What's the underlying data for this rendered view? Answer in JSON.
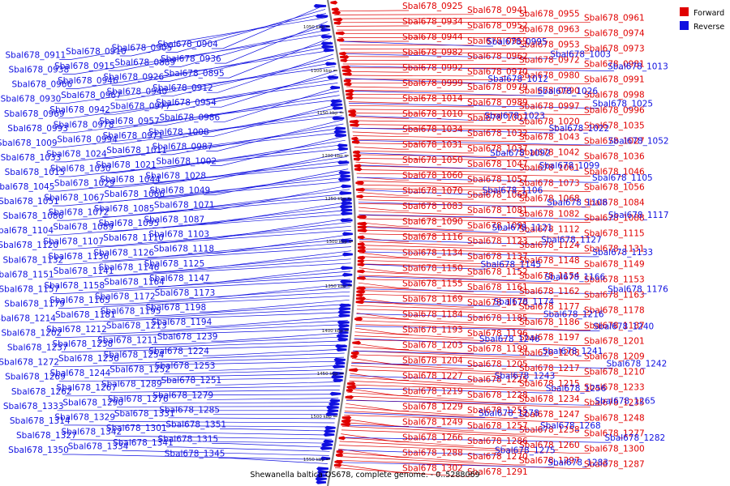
{
  "caption": "Shewanella baltica OS678, complete genome. - 0..5288069",
  "legend": [
    {
      "label": "Forward",
      "color": "#e00000"
    },
    {
      "label": "Reverse",
      "color": "#1010e0"
    }
  ],
  "colors": {
    "forward": "#e00000",
    "reverse": "#1010e0",
    "backbone": "#808080"
  },
  "ticks": [
    "1050 kbp",
    "1100 kbp",
    "1150 kbp",
    "1200 kbp",
    "1250 kbp",
    "1300 kbp",
    "1350 kbp",
    "1400 kbp",
    "1450 kbp",
    "1500 kbp",
    "1550 kbp"
  ],
  "reverse_genes": [
    "Sbal678_0904",
    "Sbal678_0905",
    "Sbal678_0910",
    "Sbal678_0911",
    "Sbal678_0936",
    "Sbal678_0889",
    "Sbal678_0915",
    "Sbal678_0938",
    "Sbal678_0895",
    "Sbal678_0926",
    "Sbal678_0946",
    "Sbal678_0966",
    "Sbal678_0912",
    "Sbal678_0940",
    "Sbal678_0967",
    "Sbal678_0930",
    "Sbal678_0954",
    "Sbal678_0977",
    "Sbal678_0942",
    "Sbal678_0969",
    "Sbal678_0986",
    "Sbal678_0957",
    "Sbal678_0978",
    "Sbal678_0993",
    "Sbal678_1008",
    "Sbal678_0971",
    "Sbal678_0994",
    "Sbal678_1009",
    "Sbal678_0987",
    "Sbal678_1011",
    "Sbal678_1024",
    "Sbal678_1033",
    "Sbal678_1002",
    "Sbal678_1021",
    "Sbal678_1030",
    "Sbal678_1015",
    "Sbal678_1028",
    "Sbal678_1044",
    "Sbal678_1029",
    "Sbal678_1045",
    "Sbal678_1049",
    "Sbal678_1066",
    "Sbal678_1067",
    "Sbal678_1051",
    "Sbal678_1071",
    "Sbal678_1085",
    "Sbal678_1072",
    "Sbal678_1086",
    "Sbal678_1087",
    "Sbal678_1095",
    "Sbal678_1089",
    "Sbal678_1104",
    "Sbal678_1103",
    "Sbal678_1110",
    "Sbal678_1107",
    "Sbal678_1120",
    "Sbal678_1118",
    "Sbal678_1126",
    "Sbal678_1136",
    "Sbal678_1132",
    "Sbal678_1125",
    "Sbal678_1146",
    "Sbal678_1141",
    "Sbal678_1151",
    "Sbal678_1147",
    "Sbal678_1164",
    "Sbal678_1158",
    "Sbal678_1157",
    "Sbal678_1173",
    "Sbal678_1172",
    "Sbal678_1165",
    "Sbal678_1179",
    "Sbal678_1198",
    "Sbal678_1195",
    "Sbal678_1181",
    "Sbal678_1214",
    "Sbal678_1194",
    "Sbal678_1213",
    "Sbal678_1212",
    "Sbal678_1202",
    "Sbal678_1239",
    "Sbal678_1211",
    "Sbal678_1238",
    "Sbal678_1237",
    "Sbal678_1224",
    "Sbal678_1254",
    "Sbal678_1236",
    "Sbal678_1272",
    "Sbal678_1253",
    "Sbal678_1252",
    "Sbal678_1244",
    "Sbal678_1269",
    "Sbal678_1251",
    "Sbal678_1289",
    "Sbal678_1267",
    "Sbal678_1262",
    "Sbal678_1279",
    "Sbal678_1276",
    "Sbal678_1290",
    "Sbal678_1333",
    "Sbal678_1285",
    "Sbal678_1331",
    "Sbal678_1329",
    "Sbal678_1314",
    "Sbal678_1351",
    "Sbal678_1301",
    "Sbal678_1342",
    "Sbal678_1327",
    "Sbal678_1315",
    "Sbal678_1341",
    "Sbal678_1334",
    "Sbal678_1350",
    "Sbal678_1345"
  ],
  "forward_genes": [
    "Sbal678_0925",
    "Sbal678_0941",
    "Sbal678_0955",
    "Sbal678_0961",
    "Sbal678_0934",
    "Sbal678_0952",
    "Sbal678_0963",
    "Sbal678_0974",
    "Sbal678_0944",
    "Sbal678_0959",
    "Sbal678_0953",
    "Sbal678_0973",
    "Sbal678_0982",
    "Sbal678_0962",
    "Sbal678_0972",
    "Sbal678_0981",
    "Sbal678_0992",
    "Sbal678_0970",
    "Sbal678_0980",
    "Sbal678_0991",
    "Sbal678_0999",
    "Sbal678_0979",
    "Sbal678_0990",
    "Sbal678_0998",
    "Sbal678_1014",
    "Sbal678_0989",
    "Sbal678_0997",
    "Sbal678_0996",
    "Sbal678_1010",
    "Sbal678_1007",
    "Sbal678_1020",
    "Sbal678_1035",
    "Sbal678_1034",
    "Sbal678_1032",
    "Sbal678_1043",
    "Sbal678_1027",
    "Sbal678_1031",
    "Sbal678_1037",
    "Sbal678_1042",
    "Sbal678_1036",
    "Sbal678_1050",
    "Sbal678_1047",
    "Sbal678_1061",
    "Sbal678_1046",
    "Sbal678_1060",
    "Sbal678_1057",
    "Sbal678_1073",
    "Sbal678_1056",
    "Sbal678_1070",
    "Sbal678_1069",
    "Sbal678_1068",
    "Sbal678_1084",
    "Sbal678_1083",
    "Sbal678_1081",
    "Sbal678_1082",
    "Sbal678_1088",
    "Sbal678_1090",
    "Sbal678_1091",
    "Sbal678_1112",
    "Sbal678_1115",
    "Sbal678_1116",
    "Sbal678_1123",
    "Sbal678_1124",
    "Sbal678_1131",
    "Sbal678_1134",
    "Sbal678_1137",
    "Sbal678_1148",
    "Sbal678_1149",
    "Sbal678_1150",
    "Sbal678_1152",
    "Sbal678_1154",
    "Sbal678_1153",
    "Sbal678_1155",
    "Sbal678_1161",
    "Sbal678_1162",
    "Sbal678_1163",
    "Sbal678_1169",
    "Sbal678_1170",
    "Sbal678_1177",
    "Sbal678_1178",
    "Sbal678_1184",
    "Sbal678_1185",
    "Sbal678_1186",
    "Sbal678_1187",
    "Sbal678_1193",
    "Sbal678_1196",
    "Sbal678_1197",
    "Sbal678_1201",
    "Sbal678_1203",
    "Sbal678_1199",
    "Sbal678_1208",
    "Sbal678_1209",
    "Sbal678_1204",
    "Sbal678_1205",
    "Sbal678_1217",
    "Sbal678_1210",
    "Sbal678_1227",
    "Sbal678_1225",
    "Sbal678_1215",
    "Sbal678_1233",
    "Sbal678_1219",
    "Sbal678_1228",
    "Sbal678_1234",
    "Sbal678_1235",
    "Sbal678_1229",
    "Sbal678_1255",
    "Sbal678_1247",
    "Sbal678_1248",
    "Sbal678_1249",
    "Sbal678_1257",
    "Sbal678_1258",
    "Sbal678_1277",
    "Sbal678_1266",
    "Sbal678_1286",
    "Sbal678_1260",
    "Sbal678_1300",
    "Sbal678_1288",
    "Sbal678_1270",
    "Sbal678_1297",
    "Sbal678_1287",
    "Sbal678_1302",
    "Sbal678_1291"
  ],
  "reverse_genes_right": [
    "Sbal678_0995",
    "Sbal678_1003",
    "Sbal678_1013",
    "Sbal678_1012",
    "Sbal678_1026",
    "Sbal678_1025",
    "Sbal678_1023",
    "Sbal678_1022",
    "Sbal678_1052",
    "Sbal678_1092",
    "Sbal678_1099",
    "Sbal678_1105",
    "Sbal678_1106",
    "Sbal678_1108",
    "Sbal678_1117",
    "Sbal678_1121",
    "Sbal678_1127",
    "Sbal678_1133",
    "Sbal678_1145",
    "Sbal678_1166",
    "Sbal678_1176",
    "Sbal678_1174",
    "Sbal678_1216",
    "Sbal678_1240",
    "Sbal678_1246",
    "Sbal678_1241",
    "Sbal678_1242",
    "Sbal678_1243",
    "Sbal678_1256",
    "Sbal678_1265",
    "Sbal678_1278",
    "Sbal678_1268",
    "Sbal678_1282",
    "Sbal678_1275",
    "Sbal678_1283"
  ]
}
